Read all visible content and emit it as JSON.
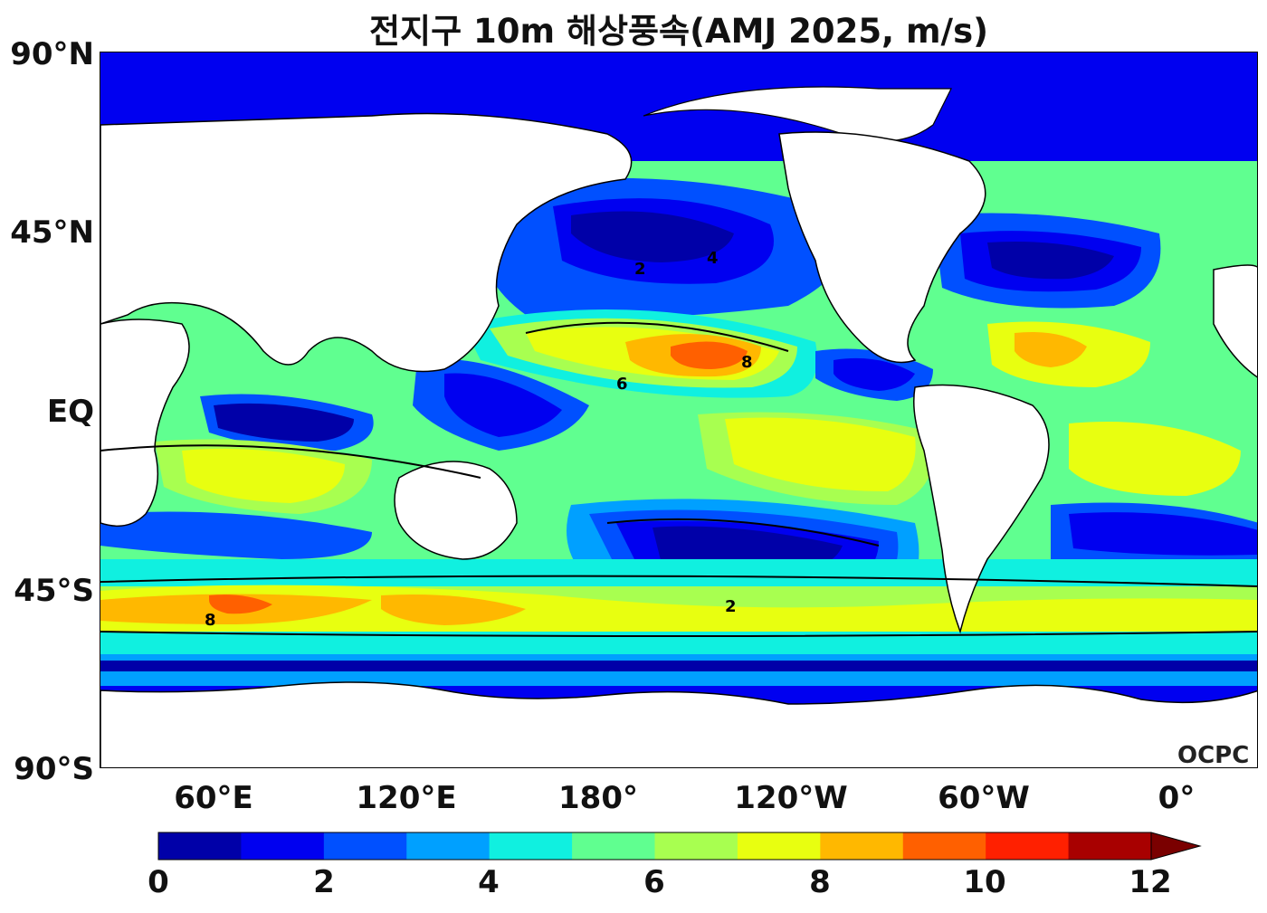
{
  "title": "전지구 10m 해상풍속(AMJ 2025, m/s)",
  "latitude_labels": [
    "90°N",
    "45°N",
    "EQ",
    "45°S",
    "90°S"
  ],
  "longitude_labels": [
    "60°E",
    "120°E",
    "180°",
    "120°W",
    "60°W",
    "0°"
  ],
  "logo": "OCPC",
  "colorbar": {
    "ticks": [
      "0",
      "2",
      "4",
      "6",
      "8",
      "10",
      "12"
    ],
    "colors": [
      "#0000a8",
      "#0000f0",
      "#0050ff",
      "#00a0ff",
      "#10f0e0",
      "#60ff90",
      "#a8ff50",
      "#e8ff10",
      "#ffb800",
      "#ff6000",
      "#ff2000",
      "#a80000",
      "#7a0000"
    ],
    "extend": "max"
  },
  "contour_labels": [
    "2",
    "4",
    "6",
    "8"
  ]
}
